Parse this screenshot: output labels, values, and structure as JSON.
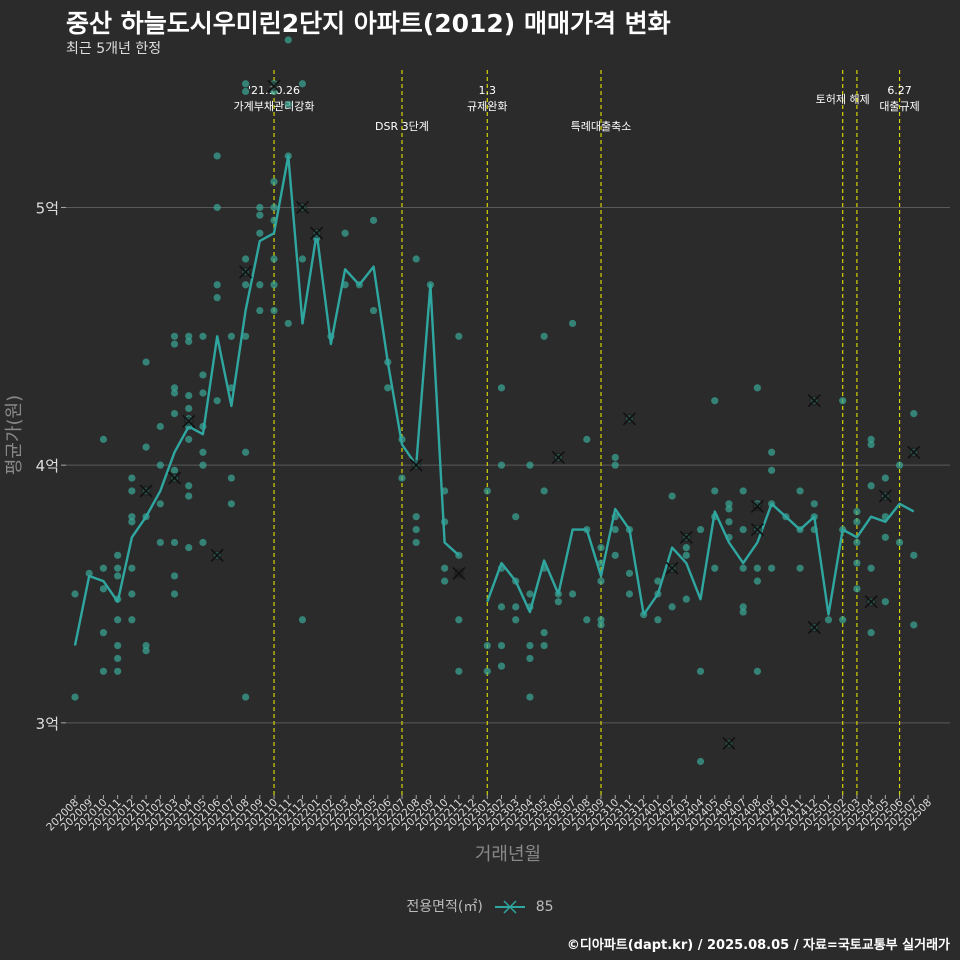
{
  "title": "중산 하늘도시우미린2단지 아파트(2012) 매매가격 변화",
  "subtitle": "최근 5개년 한정",
  "credit": "©디아파트(dapt.kr) / 2025.08.05 / 자료=국토교통부 실거래가",
  "legend": {
    "title": "전용면적(㎡)",
    "item": "85"
  },
  "colors": {
    "line": "#2fa7a0",
    "points": "#3aa899",
    "vline": "#d4d400",
    "grid": "#5a5a5a",
    "text": "#dddddd"
  },
  "chart_data": {
    "type": "line",
    "xlabel": "거래년월",
    "ylabel": "평균가(원)",
    "ylim": [
      2.72,
      5.58
    ],
    "yticks": [
      {
        "value": 3,
        "label": "3억"
      },
      {
        "value": 4,
        "label": "4억"
      },
      {
        "value": 5,
        "label": "5억"
      }
    ],
    "categories": [
      "202008",
      "202009",
      "202010",
      "202011",
      "202012",
      "202101",
      "202102",
      "202103",
      "202104",
      "202105",
      "202106",
      "202107",
      "202108",
      "202109",
      "202110",
      "202111",
      "202112",
      "202201",
      "202202",
      "202203",
      "202204",
      "202205",
      "202206",
      "202207",
      "202208",
      "202209",
      "202210",
      "202211",
      "202212",
      "202301",
      "202302",
      "202303",
      "202304",
      "202305",
      "202306",
      "202307",
      "202308",
      "202309",
      "202310",
      "202311",
      "202312",
      "202401",
      "202402",
      "202403",
      "202404",
      "202405",
      "202406",
      "202407",
      "202408",
      "202409",
      "202410",
      "202411",
      "202412",
      "202501",
      "202502",
      "202503",
      "202504",
      "202505",
      "202506",
      "202507",
      "202508"
    ],
    "series": [
      {
        "name": "85",
        "values": [
          3.3,
          3.57,
          3.55,
          3.47,
          3.72,
          3.8,
          3.9,
          4.05,
          4.15,
          4.12,
          4.5,
          4.23,
          4.6,
          4.87,
          4.9,
          5.2,
          4.55,
          4.9,
          4.47,
          4.76,
          4.7,
          4.77,
          4.4,
          4.08,
          4.0,
          4.7,
          3.7,
          3.65,
          null,
          3.47,
          3.62,
          3.55,
          3.43,
          3.63,
          3.5,
          3.75,
          3.75,
          3.57,
          3.83,
          3.75,
          3.42,
          3.5,
          3.68,
          3.62,
          3.48,
          3.82,
          3.7,
          3.62,
          3.7,
          3.85,
          3.8,
          3.75,
          3.8,
          3.42,
          3.75,
          3.72,
          3.8,
          3.78,
          3.85,
          3.82,
          null
        ]
      }
    ],
    "scatter": [
      [
        0,
        3.5
      ],
      [
        0,
        3.1
      ],
      [
        1,
        3.58
      ],
      [
        2,
        4.1
      ],
      [
        2,
        3.6
      ],
      [
        2,
        3.52
      ],
      [
        2,
        3.35
      ],
      [
        2,
        3.2
      ],
      [
        3,
        3.65
      ],
      [
        3,
        3.6
      ],
      [
        3,
        3.57
      ],
      [
        3,
        3.48
      ],
      [
        3,
        3.4
      ],
      [
        3,
        3.3
      ],
      [
        3,
        3.25
      ],
      [
        3,
        3.2
      ],
      [
        4,
        3.95
      ],
      [
        4,
        3.9
      ],
      [
        4,
        3.8
      ],
      [
        4,
        3.78
      ],
      [
        4,
        3.6
      ],
      [
        4,
        3.5
      ],
      [
        4,
        3.4
      ],
      [
        5,
        4.4
      ],
      [
        5,
        4.07
      ],
      [
        5,
        3.9
      ],
      [
        5,
        3.8
      ],
      [
        5,
        3.3
      ],
      [
        5,
        3.28
      ],
      [
        6,
        4.15
      ],
      [
        6,
        4.0
      ],
      [
        6,
        3.85
      ],
      [
        6,
        3.7
      ],
      [
        7,
        4.5
      ],
      [
        7,
        4.47
      ],
      [
        7,
        4.3
      ],
      [
        7,
        4.28
      ],
      [
        7,
        4.2
      ],
      [
        7,
        3.98
      ],
      [
        7,
        3.95
      ],
      [
        7,
        3.7
      ],
      [
        7,
        3.57
      ],
      [
        7,
        3.5
      ],
      [
        8,
        4.5
      ],
      [
        8,
        4.48
      ],
      [
        8,
        4.27
      ],
      [
        8,
        4.22
      ],
      [
        8,
        4.18
      ],
      [
        8,
        4.15
      ],
      [
        8,
        4.1
      ],
      [
        8,
        3.92
      ],
      [
        8,
        3.88
      ],
      [
        8,
        3.68
      ],
      [
        9,
        4.5
      ],
      [
        9,
        4.35
      ],
      [
        9,
        4.28
      ],
      [
        9,
        4.15
      ],
      [
        9,
        4.05
      ],
      [
        9,
        4.0
      ],
      [
        9,
        3.7
      ],
      [
        10,
        5.2
      ],
      [
        10,
        5.0
      ],
      [
        10,
        4.7
      ],
      [
        10,
        4.65
      ],
      [
        10,
        4.25
      ],
      [
        10,
        3.65
      ],
      [
        11,
        4.5
      ],
      [
        11,
        4.3
      ],
      [
        11,
        3.95
      ],
      [
        11,
        3.85
      ],
      [
        12,
        5.48
      ],
      [
        12,
        5.45
      ],
      [
        12,
        4.8
      ],
      [
        12,
        4.75
      ],
      [
        12,
        4.7
      ],
      [
        12,
        4.5
      ],
      [
        12,
        4.05
      ],
      [
        12,
        3.1
      ],
      [
        13,
        5.0
      ],
      [
        13,
        4.97
      ],
      [
        13,
        4.9
      ],
      [
        13,
        4.7
      ],
      [
        13,
        4.6
      ],
      [
        14,
        5.48
      ],
      [
        14,
        5.45
      ],
      [
        14,
        5.1
      ],
      [
        14,
        5.0
      ],
      [
        14,
        4.95
      ],
      [
        14,
        4.8
      ],
      [
        14,
        4.7
      ],
      [
        14,
        4.6
      ],
      [
        15,
        5.65
      ],
      [
        15,
        5.4
      ],
      [
        15,
        5.2
      ],
      [
        15,
        4.55
      ],
      [
        16,
        5.48
      ],
      [
        16,
        5.0
      ],
      [
        16,
        4.8
      ],
      [
        16,
        3.4
      ],
      [
        17,
        4.9
      ],
      [
        17,
        4.88
      ],
      [
        18,
        4.5
      ],
      [
        19,
        4.9
      ],
      [
        19,
        4.7
      ],
      [
        20,
        4.7
      ],
      [
        21,
        4.95
      ],
      [
        21,
        4.6
      ],
      [
        22,
        4.4
      ],
      [
        22,
        4.3
      ],
      [
        23,
        4.1
      ],
      [
        23,
        3.95
      ],
      [
        24,
        4.8
      ],
      [
        24,
        4.0
      ],
      [
        24,
        3.8
      ],
      [
        24,
        3.75
      ],
      [
        24,
        3.7
      ],
      [
        25,
        4.7
      ],
      [
        26,
        3.9
      ],
      [
        26,
        3.78
      ],
      [
        26,
        3.6
      ],
      [
        26,
        3.55
      ],
      [
        27,
        4.5
      ],
      [
        27,
        3.65
      ],
      [
        27,
        3.4
      ],
      [
        27,
        3.2
      ],
      [
        29,
        3.9
      ],
      [
        29,
        3.3
      ],
      [
        29,
        3.2
      ],
      [
        30,
        4.3
      ],
      [
        30,
        4.0
      ],
      [
        30,
        3.6
      ],
      [
        30,
        3.45
      ],
      [
        30,
        3.3
      ],
      [
        30,
        3.22
      ],
      [
        31,
        3.8
      ],
      [
        31,
        3.55
      ],
      [
        31,
        3.45
      ],
      [
        31,
        3.4
      ],
      [
        32,
        4.0
      ],
      [
        32,
        3.5
      ],
      [
        32,
        3.45
      ],
      [
        32,
        3.3
      ],
      [
        32,
        3.25
      ],
      [
        32,
        3.1
      ],
      [
        33,
        4.5
      ],
      [
        33,
        3.9
      ],
      [
        33,
        3.6
      ],
      [
        33,
        3.35
      ],
      [
        33,
        3.3
      ],
      [
        34,
        4.03
      ],
      [
        34,
        3.5
      ],
      [
        34,
        3.47
      ],
      [
        35,
        4.55
      ],
      [
        35,
        3.5
      ],
      [
        36,
        4.1
      ],
      [
        36,
        3.75
      ],
      [
        36,
        3.4
      ],
      [
        37,
        3.68
      ],
      [
        37,
        3.62
      ],
      [
        37,
        3.55
      ],
      [
        37,
        3.4
      ],
      [
        37,
        3.38
      ],
      [
        38,
        4.03
      ],
      [
        38,
        4.0
      ],
      [
        38,
        3.8
      ],
      [
        38,
        3.75
      ],
      [
        38,
        3.65
      ],
      [
        39,
        4.18
      ],
      [
        39,
        3.75
      ],
      [
        39,
        3.58
      ],
      [
        39,
        3.5
      ],
      [
        40,
        3.42
      ],
      [
        41,
        3.55
      ],
      [
        41,
        3.5
      ],
      [
        41,
        3.4
      ],
      [
        42,
        3.88
      ],
      [
        42,
        3.6
      ],
      [
        42,
        3.45
      ],
      [
        43,
        3.72
      ],
      [
        43,
        3.68
      ],
      [
        43,
        3.65
      ],
      [
        43,
        3.48
      ],
      [
        44,
        3.75
      ],
      [
        44,
        3.2
      ],
      [
        44,
        2.85
      ],
      [
        45,
        4.25
      ],
      [
        45,
        3.9
      ],
      [
        45,
        3.8
      ],
      [
        45,
        3.6
      ],
      [
        46,
        3.85
      ],
      [
        46,
        3.83
      ],
      [
        46,
        3.78
      ],
      [
        46,
        3.72
      ],
      [
        46,
        2.92
      ],
      [
        47,
        3.9
      ],
      [
        47,
        3.75
      ],
      [
        47,
        3.6
      ],
      [
        47,
        3.45
      ],
      [
        47,
        3.43
      ],
      [
        48,
        4.3
      ],
      [
        48,
        3.85
      ],
      [
        48,
        3.75
      ],
      [
        48,
        3.6
      ],
      [
        48,
        3.55
      ],
      [
        48,
        3.2
      ],
      [
        49,
        4.05
      ],
      [
        49,
        3.98
      ],
      [
        49,
        3.85
      ],
      [
        49,
        3.6
      ],
      [
        50,
        3.8
      ],
      [
        51,
        3.9
      ],
      [
        51,
        3.6
      ],
      [
        51,
        3.75
      ],
      [
        52,
        4.25
      ],
      [
        52,
        3.85
      ],
      [
        52,
        3.8
      ],
      [
        52,
        3.75
      ],
      [
        52,
        3.37
      ],
      [
        53,
        3.4
      ],
      [
        54,
        4.25
      ],
      [
        54,
        3.75
      ],
      [
        54,
        3.4
      ],
      [
        55,
        3.82
      ],
      [
        55,
        3.78
      ],
      [
        55,
        3.7
      ],
      [
        55,
        3.62
      ],
      [
        55,
        3.52
      ],
      [
        56,
        4.1
      ],
      [
        56,
        4.08
      ],
      [
        56,
        3.92
      ],
      [
        56,
        3.6
      ],
      [
        56,
        3.47
      ],
      [
        56,
        3.35
      ],
      [
        57,
        3.95
      ],
      [
        57,
        3.88
      ],
      [
        57,
        3.8
      ],
      [
        57,
        3.72
      ],
      [
        57,
        3.47
      ],
      [
        58,
        4.0
      ],
      [
        58,
        3.7
      ],
      [
        59,
        4.2
      ],
      [
        59,
        4.05
      ],
      [
        59,
        3.65
      ],
      [
        59,
        3.38
      ]
    ],
    "highlights": [
      [
        5,
        3.9
      ],
      [
        7,
        3.95
      ],
      [
        8,
        4.17
      ],
      [
        10,
        3.65
      ],
      [
        12,
        4.75
      ],
      [
        14,
        5.47
      ],
      [
        16,
        5.0
      ],
      [
        17,
        4.9
      ],
      [
        24,
        4.0
      ],
      [
        27,
        3.58
      ],
      [
        34,
        4.03
      ],
      [
        39,
        4.18
      ],
      [
        42,
        3.6
      ],
      [
        43,
        3.72
      ],
      [
        46,
        2.92
      ],
      [
        48,
        3.84
      ],
      [
        48,
        3.75
      ],
      [
        52,
        4.25
      ],
      [
        52,
        3.37
      ],
      [
        56,
        3.47
      ],
      [
        57,
        3.88
      ],
      [
        59,
        4.05
      ]
    ],
    "events": [
      {
        "index": 14,
        "lines": [
          "'21.10.26",
          "가계부채관리강화"
        ]
      },
      {
        "index": 23,
        "lines": [
          "DSR 3단계"
        ]
      },
      {
        "index": 29,
        "lines": [
          "1.3",
          "규제완화"
        ]
      },
      {
        "index": 37,
        "lines": [
          "특례대출축소"
        ]
      },
      {
        "index": 54,
        "lines": [
          "토허제 해제"
        ]
      },
      {
        "index": 55,
        "lines": []
      },
      {
        "index": 58,
        "lines": [
          "6.27",
          "대출규제"
        ]
      }
    ]
  }
}
